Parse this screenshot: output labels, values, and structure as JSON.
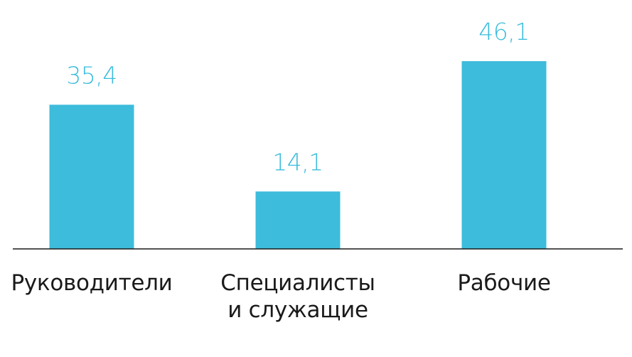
{
  "chart_data": {
    "type": "bar",
    "categories": [
      [
        "Руководители"
      ],
      [
        "Специалисты",
        "и служащие"
      ],
      [
        "Рабочие"
      ]
    ],
    "values": [
      35.4,
      14.1,
      46.1
    ],
    "value_labels": [
      "35,4",
      "14,1",
      "46,1"
    ],
    "title": "",
    "xlabel": "",
    "ylabel": "",
    "ylim": [
      0,
      50
    ],
    "grid": false,
    "legend": "none",
    "bar_color": "#3dbcdc",
    "label_color": "#3dbcdc",
    "axis_color": "#1a1a1a"
  }
}
